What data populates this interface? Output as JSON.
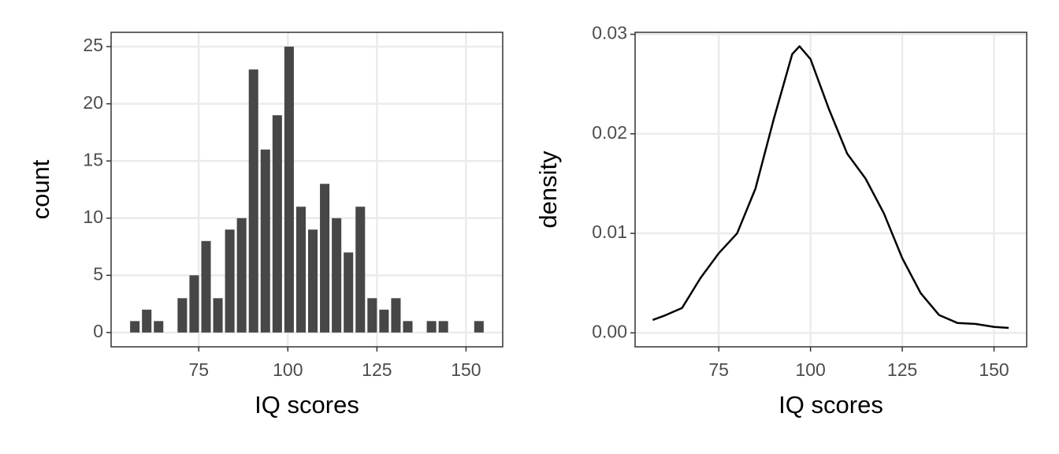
{
  "chart_data": [
    {
      "type": "histogram",
      "xlabel": "IQ scores",
      "ylabel": "count",
      "color": "#474747",
      "bins": [
        55.4,
        58.73,
        62.06,
        65.39,
        68.72,
        72.05,
        75.38,
        78.71,
        82.04,
        85.37,
        88.7,
        92.03,
        95.36,
        98.69,
        102.02,
        105.35,
        108.68,
        112.01,
        115.34,
        118.67,
        122.0,
        125.33,
        128.66,
        131.99,
        135.32,
        138.65,
        141.98,
        145.31,
        148.64,
        151.97,
        155.3
      ],
      "values": [
        1,
        2,
        1,
        0,
        3,
        5,
        8,
        3,
        9,
        10,
        23,
        16,
        19,
        25,
        11,
        9,
        13,
        10,
        7,
        11,
        3,
        2,
        3,
        1,
        0,
        1,
        1,
        0,
        0,
        1
      ],
      "xlim": [
        50.4,
        160.3
      ],
      "xticks": [
        75,
        100,
        125,
        150
      ],
      "ylim": [
        -1.25,
        26.25
      ],
      "yticks": [
        0,
        5,
        10,
        15,
        20,
        25
      ],
      "grid": true
    },
    {
      "type": "line",
      "xlabel": "IQ scores",
      "ylabel": "density",
      "color": "#000000",
      "x": [
        57,
        60,
        65,
        70,
        75,
        80,
        85,
        90,
        95,
        97,
        100,
        105,
        110,
        115,
        120,
        125,
        130,
        135,
        140,
        145,
        150,
        154
      ],
      "values": [
        0.0013,
        0.0017,
        0.0025,
        0.0055,
        0.008,
        0.01,
        0.0145,
        0.0215,
        0.028,
        0.0288,
        0.0275,
        0.0225,
        0.018,
        0.0155,
        0.012,
        0.0075,
        0.004,
        0.0018,
        0.001,
        0.0009,
        0.0006,
        0.0005
      ],
      "xlim": [
        52.2,
        158.9
      ],
      "xticks": [
        75,
        100,
        125,
        150
      ],
      "ylim": [
        -0.0014,
        0.0302
      ],
      "yticks": [
        {
          "value": 0,
          "label": "0.00"
        },
        {
          "value": 0.01,
          "label": "0.01"
        },
        {
          "value": 0.02,
          "label": "0.02"
        },
        {
          "value": 0.03,
          "label": "0.03"
        }
      ],
      "grid": true
    }
  ]
}
